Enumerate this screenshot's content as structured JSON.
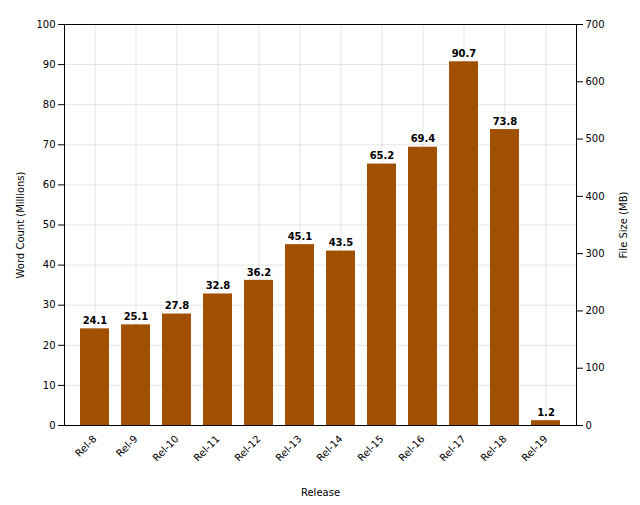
{
  "chart_data": {
    "type": "bar",
    "categories": [
      "Rel-8",
      "Rel-9",
      "Rel-10",
      "Rel-11",
      "Rel-12",
      "Rel-13",
      "Rel-14",
      "Rel-15",
      "Rel-16",
      "Rel-17",
      "Rel-18",
      "Rel-19"
    ],
    "values": [
      24.1,
      25.1,
      27.8,
      32.8,
      36.2,
      45.1,
      43.5,
      65.2,
      69.4,
      90.7,
      73.8,
      1.2
    ],
    "color": "#A05000",
    "xlabel": "Release",
    "ylabel": "Word Count (Millions)",
    "y2label": "File Size (MB)",
    "ylim": [
      0,
      100
    ],
    "yticks": [
      0,
      10,
      20,
      30,
      40,
      50,
      60,
      70,
      80,
      90,
      100
    ],
    "y2lim": [
      0,
      700
    ],
    "y2ticks": [
      0,
      100,
      200,
      300,
      400,
      500,
      600,
      700
    ],
    "grid": true,
    "data_labels": true
  }
}
